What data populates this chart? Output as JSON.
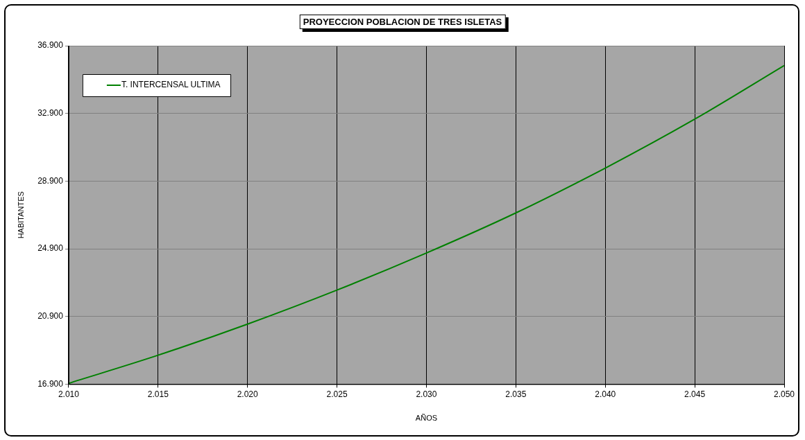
{
  "chart_data": {
    "type": "line",
    "title": "PROYECCION POBLACION DE TRES ISLETAS",
    "xlabel": "AÑOS",
    "ylabel": "HABITANTES",
    "x": [
      2010,
      2015,
      2020,
      2025,
      2030,
      2035,
      2040,
      2045,
      2050
    ],
    "series": [
      {
        "name": "T. INTERCENSAL ULTIMA",
        "color": "#008000",
        "values": [
          16950,
          18610,
          20450,
          22460,
          24650,
          27020,
          29670,
          32560,
          35730
        ]
      }
    ],
    "xlim": [
      2010,
      2050
    ],
    "xticks": [
      {
        "value": 2010,
        "label": "2.010"
      },
      {
        "value": 2015,
        "label": "2.015"
      },
      {
        "value": 2020,
        "label": "2.020"
      },
      {
        "value": 2025,
        "label": "2.025"
      },
      {
        "value": 2030,
        "label": "2.030"
      },
      {
        "value": 2035,
        "label": "2.035"
      },
      {
        "value": 2040,
        "label": "2.040"
      },
      {
        "value": 2045,
        "label": "2.045"
      },
      {
        "value": 2050,
        "label": "2.050"
      }
    ],
    "ylim": [
      16900,
      36900
    ],
    "yticks": [
      {
        "value": 16900,
        "label": "16.900"
      },
      {
        "value": 20900,
        "label": "20.900"
      },
      {
        "value": 24900,
        "label": "24.900"
      },
      {
        "value": 28900,
        "label": "28.900"
      },
      {
        "value": 32900,
        "label": "32.900"
      },
      {
        "value": 36900,
        "label": "36.900"
      }
    ],
    "grid": true,
    "legend": "top left",
    "marker": "none",
    "line_style": "solid"
  }
}
